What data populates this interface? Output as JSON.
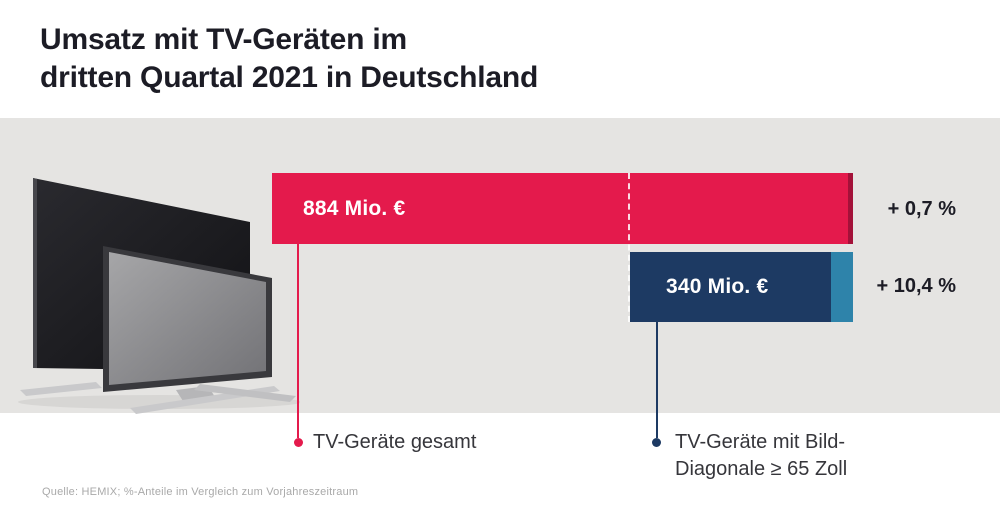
{
  "title": {
    "line1": "Umsatz mit TV-Geräten im",
    "line2": "dritten Quartal 2021 in Deutschland"
  },
  "chart_data": {
    "type": "bar",
    "orientation": "horizontal",
    "title": "Umsatz mit TV-Geräten im dritten Quartal 2021 in Deutschland",
    "unit": "Mio. €",
    "xlim": [
      0,
      884
    ],
    "grid": false,
    "legend_position": "below",
    "series": [
      {
        "name": "TV-Geräte gesamt",
        "value": 884,
        "value_label": "884 Mio. €",
        "change": "+ 0,7 %",
        "change_pct": 0.7,
        "color": "#e41a4c"
      },
      {
        "name": "TV-Geräte mit Bild-Diagonale ≥ 65 Zoll",
        "value": 340,
        "value_label": "340 Mio. €",
        "change": "+ 10,4 %",
        "change_pct": 10.4,
        "color": "#1d3a63"
      }
    ]
  },
  "legend": {
    "total_label": "TV-Geräte gesamt",
    "subset_label_line1": "TV-Geräte mit Bild-",
    "subset_label_line2": "Diagonale ≥ 65 Zoll"
  },
  "source": "Quelle: HEMIX; %-Anteile im Vergleich zum Vorjahreszeitraum",
  "icons": {
    "tv_illustration": "two-tv-sets"
  },
  "colors": {
    "page_bg": "#ffffff",
    "band_bg": "#e5e4e2",
    "bar_red": "#e41a4c",
    "bar_red_edge": "#a31139",
    "bar_navy": "#1d3a63",
    "bar_navy_edge": "#2e83aa",
    "title_text": "#1c1c25",
    "label_text": "#36363b",
    "source_text": "#a9a9a9",
    "bar_value_text": "#ffffff"
  }
}
